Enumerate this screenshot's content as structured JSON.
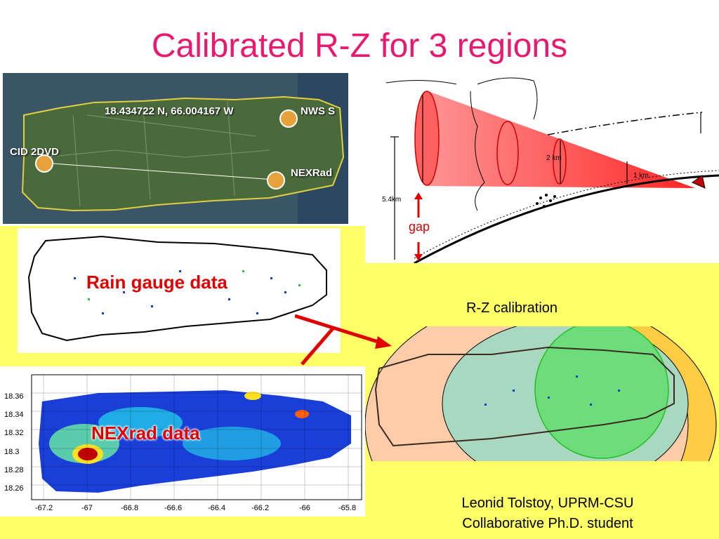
{
  "title": "Calibrated R-Z for 3 regions",
  "satellite": {
    "coords_label": "18.434722 N, 66.004167 W",
    "nws_label": "NWS S",
    "cid_label": "CID 2DVD",
    "nexrad_label": "NEXRad"
  },
  "rain_gauge_label": "Rain gauge data",
  "nexrad_label": "NEXrad data",
  "nexrad_axes": {
    "y_ticks": [
      "18.36",
      "18.34",
      "18.32",
      "18.3",
      "18.28",
      "18.26"
    ],
    "x_ticks": [
      "-67.2",
      "-67",
      "-66.8",
      "-66.6",
      "-66.4",
      "-66.2",
      "-66",
      "-65.8"
    ]
  },
  "radar_diagram": {
    "label_2km": "2 km",
    "label_1km": "1 km",
    "label_54km": "5.4km",
    "label_gap": "gap"
  },
  "calibration_label": "R-Z calibration",
  "credit_line1": "Leonid Tolstoy, UPRM-CSU",
  "credit_line2": "Collaborative Ph.D. student",
  "colors": {
    "title": "#e8196e",
    "highlight_bg": "#ffff66",
    "arrow": "#e00000"
  }
}
